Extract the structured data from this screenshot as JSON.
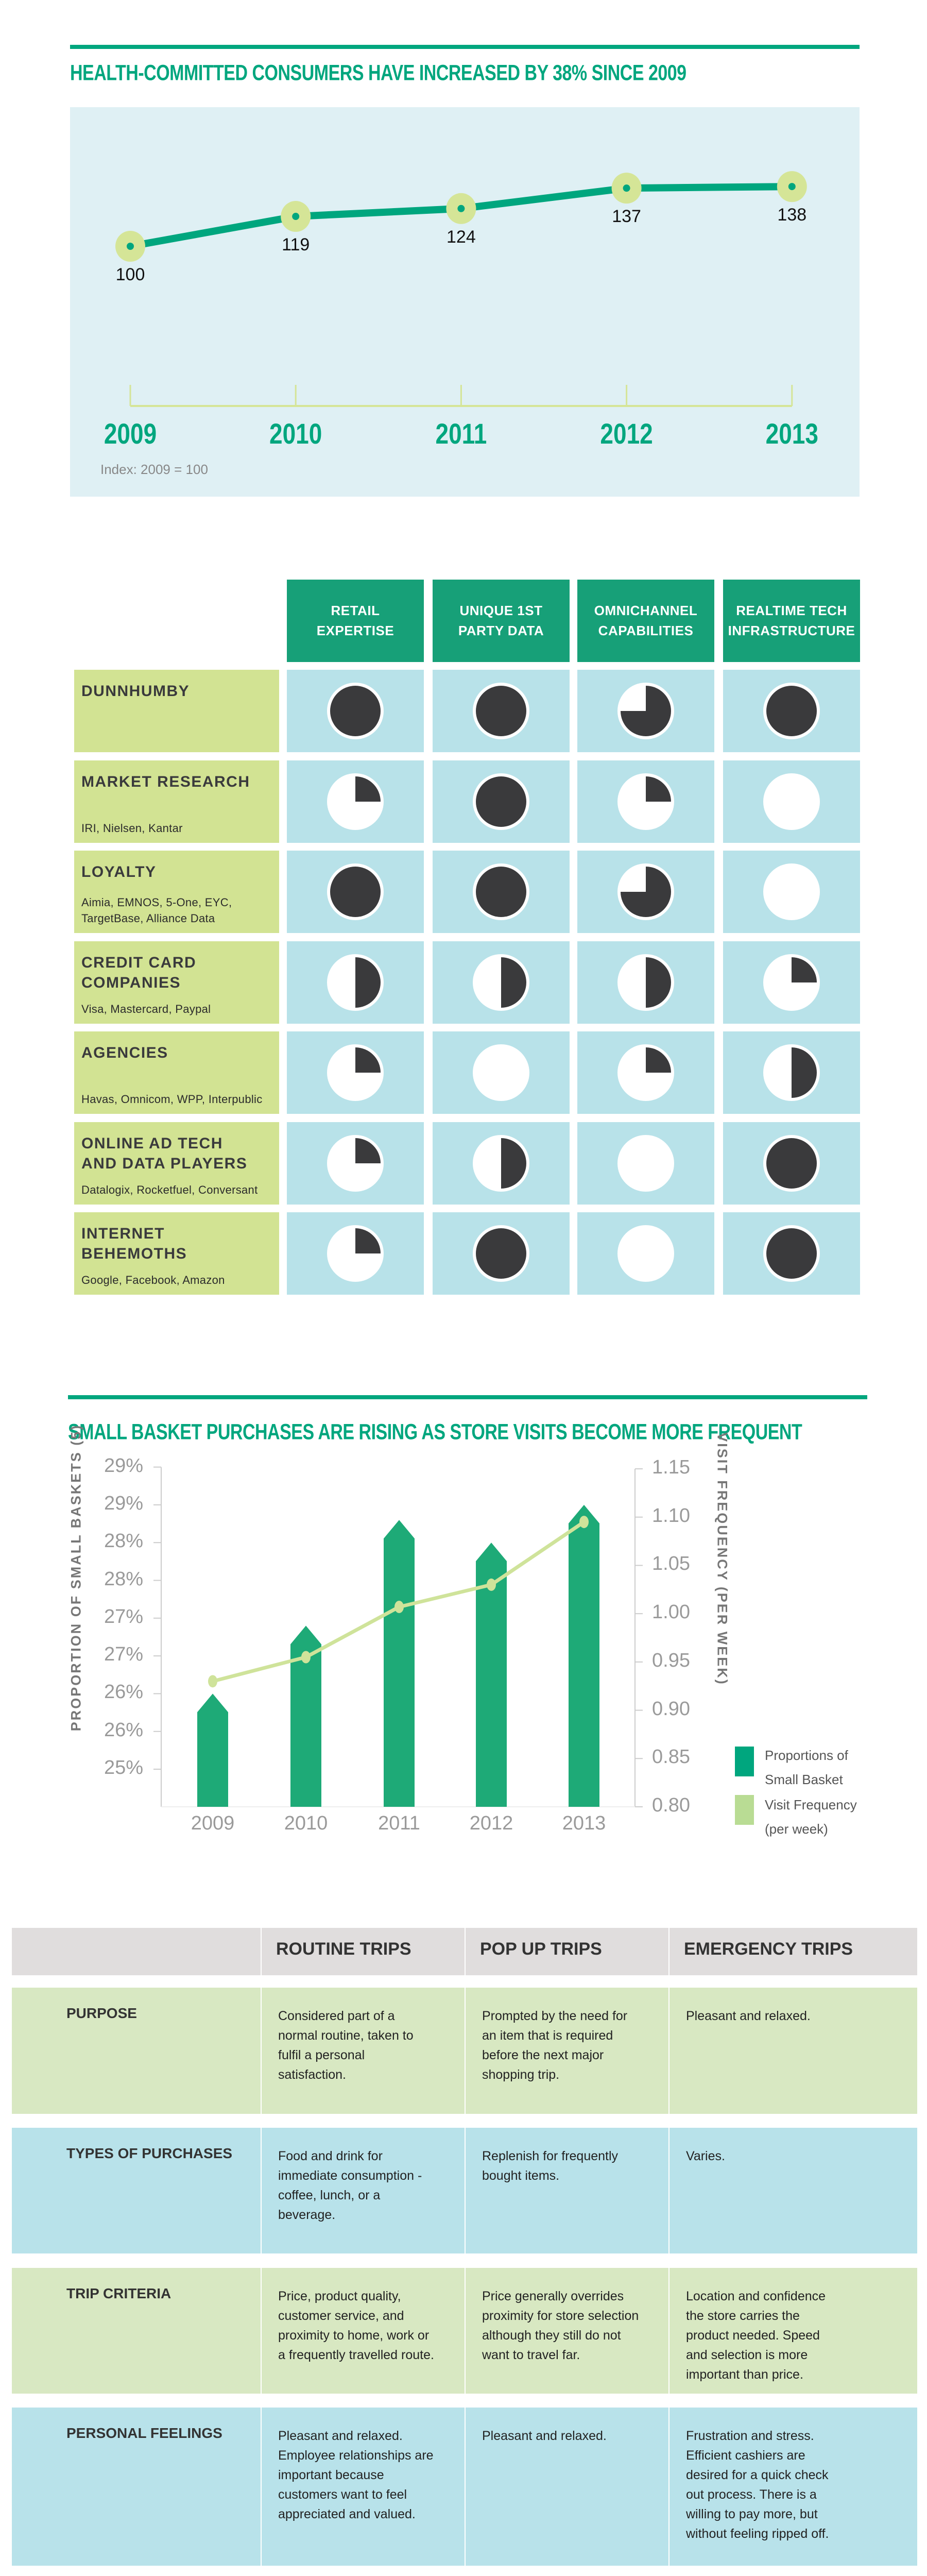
{
  "chart_data": [
    {
      "type": "line",
      "title": "HEALTH-COMMITTED CONSUMERS HAVE INCREASED BY 38% SINCE 2009",
      "categories": [
        "2009",
        "2010",
        "2011",
        "2012",
        "2013"
      ],
      "values": [
        100,
        119,
        124,
        137,
        138
      ],
      "data_labels": [
        "100",
        "119",
        "124",
        "137",
        "138"
      ],
      "note": "Index: 2009 = 100",
      "colors": {
        "line": "#00a67e",
        "marker": "#d5e597",
        "background": "#dff0f4"
      },
      "grid": false
    },
    {
      "type": "bar",
      "title": "SMALL BASKET PURCHASES ARE RISING AS STORE VISITS BECOME MORE FREQUENT",
      "categories": [
        "2009",
        "2010",
        "2011",
        "2012",
        "2013"
      ],
      "ylabel": "PROPORTION OF SMALL BASKETS (5)",
      "y2label": "VISIT FREQUENCY (PER WEEK)",
      "ylim": [
        24.5,
        29
      ],
      "y2lim": [
        0.8,
        1.15
      ],
      "yticks": [
        {
          "value": 25,
          "label": "25%"
        },
        {
          "value": 25.5,
          "label": "26%"
        },
        {
          "value": 26,
          "label": "26%"
        },
        {
          "value": 26.5,
          "label": "27%"
        },
        {
          "value": 27,
          "label": "27%"
        },
        {
          "value": 27.5,
          "label": "28%"
        },
        {
          "value": 28,
          "label": "28%"
        },
        {
          "value": 28.5,
          "label": "29%"
        },
        {
          "value": 29,
          "label": "29%"
        }
      ],
      "y2ticks": [
        "0.80",
        "0.85",
        "0.90",
        "0.95",
        "1.00",
        "1.05",
        "1.10",
        "1.15"
      ],
      "series": [
        {
          "name": "Proportions of Small Basket",
          "kind": "bar",
          "axis": "left",
          "color": "#1eaa77",
          "values": [
            26.0,
            26.9,
            28.3,
            28.0,
            28.5
          ]
        },
        {
          "name": "Visit Frequency (per week)",
          "kind": "line",
          "axis": "right",
          "color": "#cfe39a",
          "values": [
            0.93,
            0.955,
            1.007,
            1.03,
            1.095
          ]
        }
      ],
      "legend": {
        "position": "bottom-right",
        "items": [
          {
            "line1": "Proportions of",
            "line2": "Small Basket",
            "color": "#00a67e"
          },
          {
            "line1": "Visit Frequency",
            "line2": "(per week)",
            "color": "#b9dc94"
          }
        ]
      },
      "grid": false
    }
  ],
  "matrix": {
    "columns": [
      "RETAIL\nEXPERTISE",
      "UNIQUE 1ST\nPARTY DATA",
      "OMNICHANNEL\nCAPABILITIES",
      "REALTIME TECH\nINFRASTRUCTURE"
    ],
    "rows": [
      {
        "name": "DUNNHUMBY",
        "sub": "",
        "scores": [
          1,
          1,
          0.75,
          1
        ]
      },
      {
        "name": "MARKET RESEARCH",
        "sub": "IRI, Nielsen, Kantar",
        "scores": [
          0.25,
          1,
          0.25,
          0
        ]
      },
      {
        "name": "LOYALTY",
        "sub": "Aimia, EMNOS, 5-One, EYC, TargetBase, Alliance Data",
        "scores": [
          1,
          1,
          0.75,
          0
        ]
      },
      {
        "name": "CREDIT CARD\nCOMPANIES",
        "sub": "Visa, Mastercard, Paypal",
        "scores": [
          0.5,
          0.5,
          0.5,
          0.25
        ]
      },
      {
        "name": "AGENCIES",
        "sub": "Havas, Omnicom, WPP, Interpublic",
        "scores": [
          0.25,
          0,
          0.25,
          0.5
        ]
      },
      {
        "name": "ONLINE AD TECH\nAND DATA PLAYERS",
        "sub": "Datalogix, Rocketfuel, Conversant",
        "scores": [
          0.25,
          0.5,
          0,
          1
        ]
      },
      {
        "name": "INTERNET\nBEHEMOTHS",
        "sub": "Google, Facebook, Amazon",
        "scores": [
          0.25,
          1,
          0,
          1
        ]
      }
    ],
    "colors": {
      "header": "#17a078",
      "label": "#d2e393",
      "cell": "#b8e2e9",
      "fill": "#3a3a3c"
    }
  },
  "trips": {
    "columns": [
      "",
      "ROUTINE TRIPS",
      "POP UP TRIPS",
      "EMERGENCY TRIPS"
    ],
    "rows": [
      {
        "label": "PURPOSE",
        "cells": [
          "Considered part of a normal routine, taken to fulfil a personal satisfaction.",
          "Prompted by the need for an item that is required before the next major shopping trip.",
          "Pleasant and relaxed."
        ]
      },
      {
        "label": "TYPES OF PURCHASES",
        "cells": [
          "Food and drink for immediate consumption - coffee, lunch, or a beverage.",
          "Replenish for frequently bought items.",
          "Varies."
        ]
      },
      {
        "label": "TRIP CRITERIA",
        "cells": [
          "Price, product quality, customer service, and proximity to home, work or a frequently travelled route.",
          "Price generally overrides proximity for store selection although they still do not want to travel far.",
          "Location and confidence the store carries the product needed. Speed and selection is more important than price."
        ]
      },
      {
        "label": "PERSONAL FEELINGS",
        "cells": [
          "Pleasant and relaxed. Employee relationships are important because customers want to feel appreciated and valued.",
          "Pleasant and relaxed.",
          "Frustration and stress. Efficient cashiers are desired for a quick check out process. There is a willing to pay more, but without feeling ripped off."
        ]
      }
    ],
    "colors": {
      "header": "#e0dddd",
      "green": "#d8e8c2",
      "blue": "#b8e2ea"
    }
  }
}
